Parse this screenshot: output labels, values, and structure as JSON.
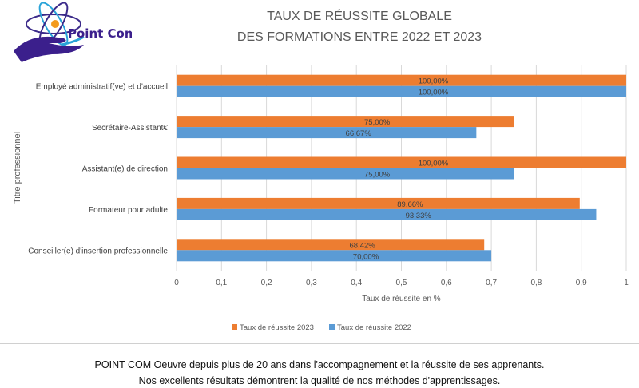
{
  "logo": {
    "text": "Point Com"
  },
  "chart_data": {
    "type": "bar",
    "orientation": "horizontal",
    "title": [
      "TAUX DE RÉUSSITE GLOBALE",
      "DES  FORMATIONS ENTRE 2022 ET 2023"
    ],
    "categories": [
      "Employé administratif(ve) et d'accueil",
      "Secrétaire-Assistant€",
      "Assistant(e) de direction",
      "Formateur pour adulte",
      "Conseiller(e) d'insertion professionnelle"
    ],
    "series": [
      {
        "name": "Taux de réussite 2023",
        "color": "#ED7D31",
        "values": [
          1,
          0.75,
          1,
          0.8966,
          0.6842
        ],
        "labels": [
          "100,00%",
          "75,00%",
          "100,00%",
          "89,66%",
          "68,42%"
        ]
      },
      {
        "name": "Taux de réussite 2022",
        "color": "#5B9BD5",
        "values": [
          1,
          0.6667,
          0.75,
          0.9333,
          0.7
        ],
        "labels": [
          "100,00%",
          "66,67%",
          "75,00%",
          "93,33%",
          "70,00%"
        ]
      }
    ],
    "xlabel": "Taux de réussite en %",
    "ylabel": "Titre professionnel",
    "xlim": [
      0,
      1
    ],
    "xticks": [
      "0",
      "0,1",
      "0,2",
      "0,3",
      "0,4",
      "0,5",
      "0,6",
      "0,7",
      "0,8",
      "0,9",
      "1"
    ],
    "grid": true,
    "legend": "bottom"
  },
  "footer": {
    "line1": "POINT COM Oeuvre depuis plus de 20 ans dans l'accompagnement et la réussite de ses apprenants.",
    "line2": "Nos excellents résultats démontrent la qualité de nos méthodes d'apprentissages."
  }
}
